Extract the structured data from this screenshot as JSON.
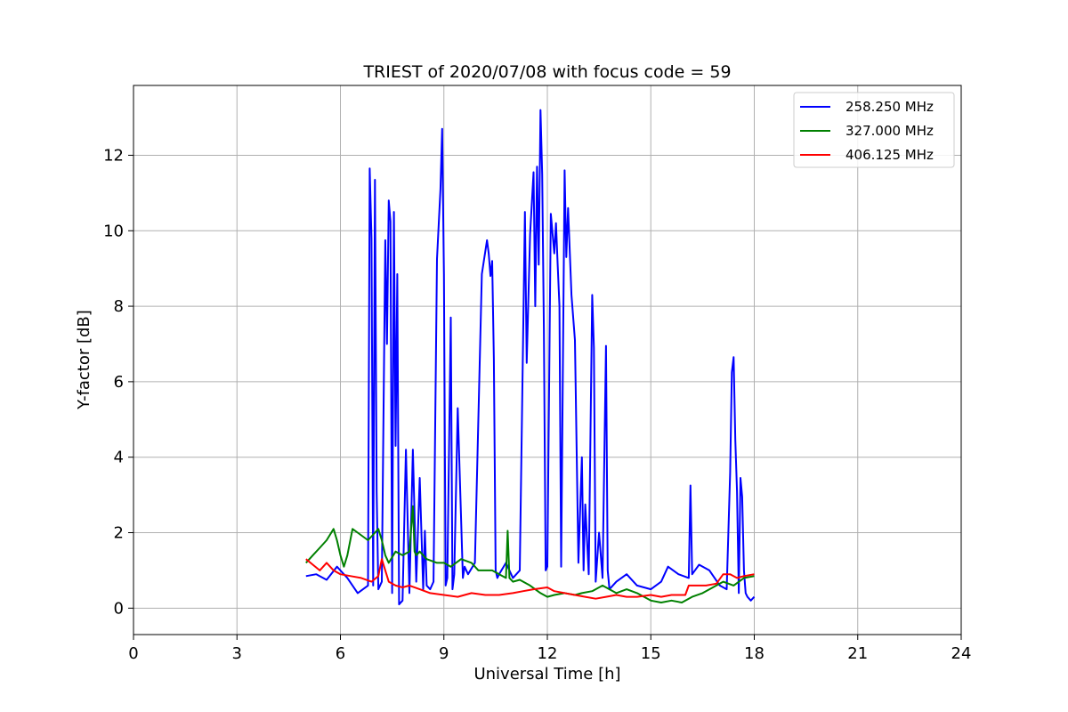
{
  "chart_data": {
    "type": "line",
    "title": "TRIEST of 2020/07/08 with focus code = 59",
    "xlabel": "Universal Time [h]",
    "ylabel": "Y-factor [dB]",
    "xlim": [
      0,
      24
    ],
    "ylim": [
      -0.7,
      13.85
    ],
    "xticks": [
      0,
      3,
      6,
      9,
      12,
      15,
      18,
      21,
      24
    ],
    "yticks": [
      0,
      2,
      4,
      6,
      8,
      10,
      12
    ],
    "grid": true,
    "legend_position": "top-right",
    "series": [
      {
        "name": "258.250 MHz",
        "color": "#0000ff",
        "x": [
          5.0,
          5.3,
          5.6,
          5.9,
          6.2,
          6.5,
          6.8,
          6.85,
          6.9,
          6.95,
          7.0,
          7.05,
          7.1,
          7.2,
          7.3,
          7.35,
          7.4,
          7.45,
          7.5,
          7.55,
          7.6,
          7.65,
          7.7,
          7.8,
          7.9,
          8.0,
          8.1,
          8.2,
          8.3,
          8.4,
          8.45,
          8.5,
          8.6,
          8.7,
          8.8,
          8.9,
          8.95,
          9.0,
          9.05,
          9.1,
          9.2,
          9.25,
          9.3,
          9.4,
          9.55,
          9.6,
          9.7,
          9.9,
          10.1,
          10.25,
          10.3,
          10.35,
          10.4,
          10.45,
          10.5,
          10.55,
          10.6,
          10.8,
          11.0,
          11.2,
          11.35,
          11.4,
          11.5,
          11.6,
          11.65,
          11.7,
          11.75,
          11.8,
          11.85,
          11.9,
          11.95,
          12.0,
          12.1,
          12.2,
          12.25,
          12.3,
          12.35,
          12.4,
          12.5,
          12.55,
          12.6,
          12.7,
          12.8,
          12.9,
          13.0,
          13.05,
          13.1,
          13.2,
          13.3,
          13.35,
          13.4,
          13.5,
          13.6,
          13.7,
          13.75,
          13.8,
          14.0,
          14.3,
          14.6,
          15.0,
          15.3,
          15.5,
          15.8,
          16.1,
          16.15,
          16.2,
          16.4,
          16.7,
          17.0,
          17.2,
          17.3,
          17.35,
          17.4,
          17.45,
          17.5,
          17.55,
          17.6,
          17.65,
          17.7,
          17.75,
          17.8,
          17.9,
          18.0
        ],
        "y": [
          0.85,
          0.9,
          0.75,
          1.1,
          0.8,
          0.4,
          0.6,
          11.65,
          9.8,
          0.6,
          11.35,
          3.1,
          0.5,
          0.7,
          9.75,
          7.0,
          10.8,
          10.25,
          0.4,
          10.5,
          4.3,
          8.85,
          0.1,
          0.2,
          4.2,
          0.4,
          4.2,
          0.7,
          3.45,
          0.5,
          2.05,
          0.6,
          0.5,
          0.7,
          9.25,
          11.1,
          12.7,
          8.85,
          0.6,
          0.8,
          7.7,
          0.5,
          0.9,
          5.3,
          0.8,
          1.1,
          0.9,
          1.2,
          8.85,
          9.75,
          9.4,
          8.8,
          9.2,
          6.6,
          1.0,
          0.8,
          0.9,
          1.2,
          0.8,
          1.0,
          10.5,
          6.5,
          9.9,
          11.55,
          8.0,
          11.7,
          9.1,
          13.2,
          11.5,
          7.4,
          1.0,
          1.1,
          10.45,
          9.4,
          10.2,
          9.1,
          8.0,
          1.1,
          11.6,
          9.3,
          10.6,
          8.3,
          7.1,
          1.2,
          4.0,
          1.0,
          2.75,
          0.9,
          8.3,
          6.9,
          0.7,
          2.0,
          0.8,
          6.95,
          1.0,
          0.5,
          0.7,
          0.9,
          0.6,
          0.5,
          0.7,
          1.1,
          0.9,
          0.8,
          3.25,
          0.9,
          1.15,
          1.0,
          0.6,
          0.5,
          3.6,
          6.25,
          6.65,
          4.45,
          3.1,
          0.4,
          3.45,
          2.95,
          1.0,
          0.4,
          0.3,
          0.2,
          0.3
        ]
      },
      {
        "name": "327.000 MHz",
        "color": "#008000",
        "x": [
          5.0,
          5.2,
          5.4,
          5.6,
          5.8,
          5.9,
          6.0,
          6.1,
          6.2,
          6.35,
          6.5,
          6.8,
          7.0,
          7.1,
          7.2,
          7.3,
          7.4,
          7.6,
          7.8,
          8.0,
          8.1,
          8.15,
          8.2,
          8.3,
          8.5,
          8.8,
          9.0,
          9.2,
          9.5,
          9.8,
          10.0,
          10.2,
          10.4,
          10.6,
          10.8,
          10.85,
          10.9,
          11.0,
          11.2,
          11.5,
          11.8,
          12.0,
          12.2,
          12.5,
          12.8,
          13.0,
          13.3,
          13.6,
          14.0,
          14.3,
          14.6,
          15.0,
          15.3,
          15.6,
          15.9,
          16.2,
          16.5,
          16.8,
          17.1,
          17.4,
          17.7,
          18.0
        ],
        "y": [
          1.2,
          1.4,
          1.6,
          1.8,
          2.1,
          1.8,
          1.4,
          1.1,
          1.4,
          2.1,
          2.0,
          1.8,
          2.0,
          2.1,
          1.8,
          1.4,
          1.2,
          1.5,
          1.4,
          1.5,
          2.7,
          1.5,
          1.4,
          1.5,
          1.3,
          1.2,
          1.2,
          1.1,
          1.3,
          1.2,
          1.0,
          1.0,
          1.0,
          0.9,
          0.8,
          2.05,
          0.8,
          0.7,
          0.75,
          0.6,
          0.4,
          0.3,
          0.35,
          0.4,
          0.35,
          0.4,
          0.45,
          0.6,
          0.4,
          0.5,
          0.4,
          0.2,
          0.15,
          0.2,
          0.15,
          0.3,
          0.4,
          0.55,
          0.7,
          0.6,
          0.8,
          0.85
        ]
      },
      {
        "name": "406.125 MHz",
        "color": "#ff0000",
        "x": [
          5.0,
          5.2,
          5.4,
          5.6,
          5.8,
          6.0,
          6.3,
          6.6,
          6.9,
          7.1,
          7.2,
          7.4,
          7.6,
          7.8,
          8.0,
          8.3,
          8.6,
          9.0,
          9.4,
          9.8,
          10.2,
          10.6,
          11.0,
          11.3,
          11.6,
          12.0,
          12.2,
          12.5,
          12.8,
          13.1,
          13.4,
          13.7,
          14.0,
          14.3,
          14.6,
          15.0,
          15.3,
          15.6,
          16.0,
          16.1,
          16.3,
          16.6,
          16.9,
          17.1,
          17.3,
          17.5,
          17.7,
          18.0
        ],
        "y": [
          1.3,
          1.15,
          1.0,
          1.2,
          1.0,
          0.9,
          0.85,
          0.8,
          0.7,
          0.85,
          1.3,
          0.7,
          0.6,
          0.55,
          0.6,
          0.5,
          0.4,
          0.35,
          0.3,
          0.4,
          0.35,
          0.35,
          0.4,
          0.45,
          0.5,
          0.55,
          0.45,
          0.4,
          0.35,
          0.3,
          0.25,
          0.3,
          0.35,
          0.3,
          0.3,
          0.35,
          0.3,
          0.35,
          0.35,
          0.6,
          0.6,
          0.6,
          0.65,
          0.9,
          0.9,
          0.8,
          0.85,
          0.9
        ]
      }
    ]
  }
}
